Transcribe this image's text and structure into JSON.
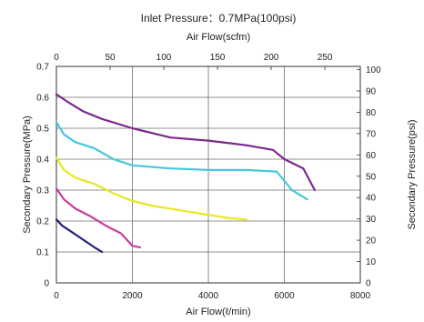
{
  "chart_data": {
    "type": "line",
    "title": "Inlet Pressure：0.7MPa(100psi)",
    "xlabel": "Air Flow(ℓ/min)",
    "x2label": "Air Flow(scfm)",
    "ylabel": "Secondary Pressure(MPa)",
    "y2label": "Secondary Pressure(psi)",
    "xlim": [
      0,
      8000
    ],
    "ylim": [
      0,
      0.7
    ],
    "x2lim": [
      0,
      283
    ],
    "y2lim": [
      0,
      101.5
    ],
    "x_ticks": [
      "0",
      "2000",
      "4000",
      "6000",
      "8000"
    ],
    "y_ticks": [
      "0",
      "0.1",
      "0.2",
      "0.3",
      "0.4",
      "0.5",
      "0.6",
      "0.7"
    ],
    "x2_ticks": [
      "0",
      "50",
      "100",
      "150",
      "200",
      "250"
    ],
    "y2_ticks": [
      "0",
      "10",
      "20",
      "30",
      "40",
      "50",
      "60",
      "70",
      "80",
      "90",
      "100"
    ],
    "grid": true,
    "legend": "none",
    "series": [
      {
        "color": "#1f1f7a",
        "x": [
          0,
          150,
          400,
          700,
          1000,
          1200
        ],
        "y": [
          0.205,
          0.185,
          0.165,
          0.14,
          0.115,
          0.1
        ]
      },
      {
        "color": "#c83ca0",
        "x": [
          0,
          200,
          500,
          900,
          1300,
          1700,
          2000,
          2200
        ],
        "y": [
          0.305,
          0.27,
          0.24,
          0.215,
          0.185,
          0.16,
          0.12,
          0.115
        ]
      },
      {
        "color": "#e8e820",
        "x": [
          0,
          200,
          500,
          1000,
          1500,
          2000,
          2500,
          3000,
          3500,
          4000,
          4500,
          5000
        ],
        "y": [
          0.405,
          0.365,
          0.34,
          0.32,
          0.29,
          0.265,
          0.25,
          0.24,
          0.23,
          0.22,
          0.21,
          0.205
        ]
      },
      {
        "color": "#46c8dc",
        "x": [
          0,
          200,
          500,
          1000,
          1500,
          2000,
          3000,
          4000,
          5000,
          5800,
          6000,
          6200,
          6600
        ],
        "y": [
          0.52,
          0.48,
          0.455,
          0.435,
          0.4,
          0.38,
          0.37,
          0.365,
          0.365,
          0.36,
          0.33,
          0.3,
          0.27
        ]
      },
      {
        "color": "#7a2a8c",
        "x": [
          0,
          300,
          700,
          1200,
          2000,
          3000,
          4000,
          5000,
          5700,
          6000,
          6500,
          6800
        ],
        "y": [
          0.61,
          0.585,
          0.555,
          0.53,
          0.5,
          0.47,
          0.46,
          0.445,
          0.43,
          0.4,
          0.37,
          0.3
        ]
      }
    ]
  }
}
